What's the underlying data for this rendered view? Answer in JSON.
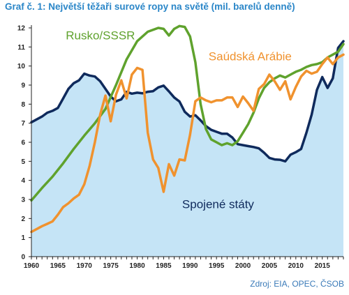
{
  "chart_data": {
    "type": "line",
    "title": "Graf č. 1: Největší těžaři surové ropy na světě (mil. barelů denně)",
    "source": "Zdroj: EIA, OPEC, ČSOB",
    "xlim": [
      1960,
      2019
    ],
    "ylim": [
      0,
      12
    ],
    "x_ticks": [
      1960,
      1965,
      1970,
      1975,
      1980,
      1985,
      1990,
      1995,
      2000,
      2005,
      2010,
      2015
    ],
    "y_ticks": [
      0,
      1,
      2,
      3,
      4,
      5,
      6,
      7,
      8,
      9,
      10,
      11,
      12
    ],
    "grid": false,
    "legend": "inline labels",
    "series": [
      {
        "name": "Spojené státy",
        "style": "area",
        "color": "#0f2a5c",
        "fill": "#c5e4f6",
        "points": [
          [
            1960,
            7.05
          ],
          [
            1961,
            7.2
          ],
          [
            1962,
            7.35
          ],
          [
            1963,
            7.55
          ],
          [
            1964,
            7.65
          ],
          [
            1965,
            7.8
          ],
          [
            1966,
            8.3
          ],
          [
            1967,
            8.8
          ],
          [
            1968,
            9.1
          ],
          [
            1969,
            9.25
          ],
          [
            1970,
            9.6
          ],
          [
            1971,
            9.5
          ],
          [
            1972,
            9.45
          ],
          [
            1973,
            9.2
          ],
          [
            1974,
            8.8
          ],
          [
            1975,
            8.4
          ],
          [
            1976,
            8.15
          ],
          [
            1977,
            8.25
          ],
          [
            1978,
            8.65
          ],
          [
            1979,
            8.55
          ],
          [
            1980,
            8.6
          ],
          [
            1981,
            8.57
          ],
          [
            1982,
            8.65
          ],
          [
            1983,
            8.68
          ],
          [
            1984,
            8.88
          ],
          [
            1985,
            8.97
          ],
          [
            1986,
            8.67
          ],
          [
            1987,
            8.35
          ],
          [
            1988,
            8.14
          ],
          [
            1989,
            7.6
          ],
          [
            1990,
            7.35
          ],
          [
            1991,
            7.42
          ],
          [
            1992,
            7.15
          ],
          [
            1993,
            6.85
          ],
          [
            1994,
            6.65
          ],
          [
            1995,
            6.55
          ],
          [
            1996,
            6.45
          ],
          [
            1997,
            6.45
          ],
          [
            1998,
            6.25
          ],
          [
            1999,
            5.9
          ],
          [
            2000,
            5.85
          ],
          [
            2001,
            5.8
          ],
          [
            2002,
            5.75
          ],
          [
            2003,
            5.68
          ],
          [
            2004,
            5.45
          ],
          [
            2005,
            5.18
          ],
          [
            2006,
            5.1
          ],
          [
            2007,
            5.08
          ],
          [
            2008,
            5.0
          ],
          [
            2009,
            5.35
          ],
          [
            2010,
            5.48
          ],
          [
            2011,
            5.65
          ],
          [
            2012,
            6.5
          ],
          [
            2013,
            7.45
          ],
          [
            2014,
            8.75
          ],
          [
            2015,
            9.42
          ],
          [
            2016,
            8.85
          ],
          [
            2017,
            9.35
          ],
          [
            2018,
            10.95
          ],
          [
            2019,
            11.3
          ]
        ]
      },
      {
        "name": "Rusko/SSSR",
        "style": "line",
        "color": "#5fa22d",
        "points": [
          [
            1960,
            2.95
          ],
          [
            1962,
            3.6
          ],
          [
            1964,
            4.2
          ],
          [
            1966,
            4.9
          ],
          [
            1968,
            5.65
          ],
          [
            1970,
            6.35
          ],
          [
            1972,
            7.0
          ],
          [
            1974,
            7.75
          ],
          [
            1976,
            9.0
          ],
          [
            1978,
            10.35
          ],
          [
            1980,
            11.3
          ],
          [
            1982,
            11.8
          ],
          [
            1984,
            12.0
          ],
          [
            1985,
            11.95
          ],
          [
            1986,
            11.6
          ],
          [
            1987,
            11.95
          ],
          [
            1988,
            12.1
          ],
          [
            1989,
            12.05
          ],
          [
            1990,
            11.55
          ],
          [
            1991,
            10.2
          ],
          [
            1992,
            8.0
          ],
          [
            1993,
            6.7
          ],
          [
            1994,
            6.15
          ],
          [
            1995,
            6.0
          ],
          [
            1996,
            5.85
          ],
          [
            1997,
            5.95
          ],
          [
            1998,
            5.85
          ],
          [
            1999,
            6.05
          ],
          [
            2000,
            6.5
          ],
          [
            2001,
            6.95
          ],
          [
            2002,
            7.55
          ],
          [
            2003,
            8.3
          ],
          [
            2004,
            8.85
          ],
          [
            2005,
            9.15
          ],
          [
            2006,
            9.35
          ],
          [
            2007,
            9.5
          ],
          [
            2008,
            9.4
          ],
          [
            2009,
            9.55
          ],
          [
            2010,
            9.7
          ],
          [
            2011,
            9.8
          ],
          [
            2012,
            9.95
          ],
          [
            2013,
            10.05
          ],
          [
            2014,
            10.1
          ],
          [
            2015,
            10.2
          ],
          [
            2016,
            10.45
          ],
          [
            2017,
            10.6
          ],
          [
            2018,
            10.75
          ],
          [
            2019,
            11.15
          ]
        ]
      },
      {
        "name": "Saúdská Arábie",
        "style": "line",
        "color": "#f0922e",
        "points": [
          [
            1960,
            1.3
          ],
          [
            1961,
            1.45
          ],
          [
            1962,
            1.6
          ],
          [
            1963,
            1.72
          ],
          [
            1964,
            1.85
          ],
          [
            1965,
            2.2
          ],
          [
            1966,
            2.6
          ],
          [
            1967,
            2.8
          ],
          [
            1968,
            3.05
          ],
          [
            1969,
            3.25
          ],
          [
            1970,
            3.8
          ],
          [
            1971,
            4.75
          ],
          [
            1972,
            6.0
          ],
          [
            1973,
            7.45
          ],
          [
            1974,
            8.45
          ],
          [
            1975,
            7.1
          ],
          [
            1976,
            8.5
          ],
          [
            1977,
            9.25
          ],
          [
            1978,
            8.3
          ],
          [
            1979,
            9.55
          ],
          [
            1980,
            9.9
          ],
          [
            1981,
            9.8
          ],
          [
            1982,
            6.5
          ],
          [
            1983,
            5.1
          ],
          [
            1984,
            4.65
          ],
          [
            1985,
            3.4
          ],
          [
            1986,
            4.85
          ],
          [
            1987,
            4.25
          ],
          [
            1988,
            5.1
          ],
          [
            1989,
            5.05
          ],
          [
            1990,
            6.4
          ],
          [
            1991,
            8.15
          ],
          [
            1992,
            8.35
          ],
          [
            1993,
            8.2
          ],
          [
            1994,
            8.1
          ],
          [
            1995,
            8.2
          ],
          [
            1996,
            8.2
          ],
          [
            1997,
            8.35
          ],
          [
            1998,
            8.35
          ],
          [
            1999,
            7.85
          ],
          [
            2000,
            8.4
          ],
          [
            2001,
            8.05
          ],
          [
            2002,
            7.65
          ],
          [
            2003,
            8.8
          ],
          [
            2004,
            9.05
          ],
          [
            2005,
            9.55
          ],
          [
            2006,
            9.2
          ],
          [
            2007,
            8.75
          ],
          [
            2008,
            9.2
          ],
          [
            2009,
            8.25
          ],
          [
            2010,
            8.9
          ],
          [
            2011,
            9.45
          ],
          [
            2012,
            9.75
          ],
          [
            2013,
            9.6
          ],
          [
            2014,
            9.7
          ],
          [
            2015,
            10.1
          ],
          [
            2016,
            10.45
          ],
          [
            2017,
            10.1
          ],
          [
            2018,
            10.45
          ],
          [
            2019,
            10.6
          ]
        ]
      }
    ],
    "annotations": [
      {
        "text": "Rusko/SSSR",
        "x": 1966.5,
        "y": 11.4
      },
      {
        "text": "Saúdská Arábie",
        "x": 1993.5,
        "y": 10.3
      },
      {
        "text": "Spojené státy",
        "x": 1988.5,
        "y": 2.55
      }
    ]
  }
}
